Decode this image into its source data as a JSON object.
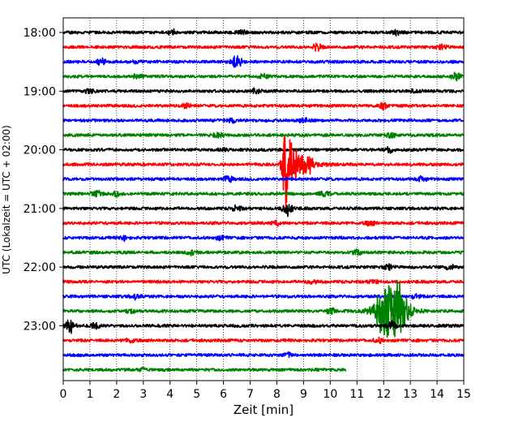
{
  "chart_data": {
    "type": "line",
    "subtype": "helicorder-seismogram",
    "title": "",
    "xlabel": "Zeit  [min]",
    "ylabel": "UTC (Lokalzeit = UTC + 02:00)",
    "xlim": [
      0,
      15
    ],
    "x_ticks": [
      0,
      1,
      2,
      3,
      4,
      5,
      6,
      7,
      8,
      9,
      10,
      11,
      12,
      13,
      14,
      15
    ],
    "x_tick_labels": [
      "0",
      "1",
      "2",
      "3",
      "4",
      "5",
      "6",
      "7",
      "8",
      "9",
      "10",
      "11",
      "12",
      "13",
      "14",
      "15"
    ],
    "y_tick_labels": [
      "18:00",
      "19:00",
      "20:00",
      "21:00",
      "22:00",
      "23:00"
    ],
    "y_tick_row_indices": [
      0,
      4,
      8,
      12,
      16,
      20
    ],
    "grid": "vertical-dotted",
    "line_interval_minutes": 15,
    "start_time": "18:00",
    "trace_color_cycle": [
      "#000000",
      "#ff0000",
      "#0000ff",
      "#008000"
    ],
    "traces": [
      {
        "start": "18:00",
        "color": "#000000",
        "end_min": 15,
        "events": [
          {
            "t": 4.1,
            "amp": 3
          },
          {
            "t": 6.7,
            "amp": 3
          },
          {
            "t": 12.5,
            "amp": 3
          }
        ]
      },
      {
        "start": "18:15",
        "color": "#ff0000",
        "end_min": 15,
        "events": [
          {
            "t": 9.5,
            "amp": 4
          },
          {
            "t": 14.2,
            "amp": 4
          }
        ]
      },
      {
        "start": "18:30",
        "color": "#0000ff",
        "end_min": 15,
        "events": [
          {
            "t": 1.4,
            "amp": 4
          },
          {
            "t": 6.5,
            "amp": 10
          },
          {
            "t": 2.7,
            "amp": 2
          }
        ]
      },
      {
        "start": "18:45",
        "color": "#008000",
        "end_min": 15,
        "events": [
          {
            "t": 2.8,
            "amp": 3
          },
          {
            "t": 7.5,
            "amp": 3
          },
          {
            "t": 14.7,
            "amp": 4
          }
        ]
      },
      {
        "start": "19:00",
        "color": "#000000",
        "end_min": 15,
        "events": [
          {
            "t": 1.0,
            "amp": 3
          },
          {
            "t": 7.2,
            "amp": 3
          },
          {
            "t": 13.2,
            "amp": 3
          }
        ]
      },
      {
        "start": "19:15",
        "color": "#ff0000",
        "end_min": 15,
        "events": [
          {
            "t": 4.6,
            "amp": 3
          },
          {
            "t": 12.0,
            "amp": 4
          }
        ]
      },
      {
        "start": "19:30",
        "color": "#0000ff",
        "end_min": 15,
        "events": [
          {
            "t": 6.3,
            "amp": 3
          },
          {
            "t": 9.0,
            "amp": 3
          }
        ]
      },
      {
        "start": "19:45",
        "color": "#008000",
        "end_min": 15,
        "events": [
          {
            "t": 5.8,
            "amp": 3
          },
          {
            "t": 12.3,
            "amp": 3
          }
        ]
      },
      {
        "start": "20:00",
        "color": "#000000",
        "end_min": 15,
        "events": [
          {
            "t": 12.2,
            "amp": 3
          },
          {
            "t": 6.0,
            "amp": 2
          }
        ]
      },
      {
        "start": "20:15",
        "color": "#ff0000",
        "end_min": 15,
        "events": [
          {
            "t": 8.35,
            "amp": 60
          },
          {
            "t": 9.2,
            "amp": 10
          }
        ]
      },
      {
        "start": "20:30",
        "color": "#0000ff",
        "end_min": 15,
        "events": [
          {
            "t": 6.2,
            "amp": 4
          },
          {
            "t": 13.4,
            "amp": 3
          }
        ]
      },
      {
        "start": "20:45",
        "color": "#008000",
        "end_min": 15,
        "events": [
          {
            "t": 1.3,
            "amp": 4
          },
          {
            "t": 2.0,
            "amp": 3
          },
          {
            "t": 9.8,
            "amp": 3
          }
        ]
      },
      {
        "start": "21:00",
        "color": "#000000",
        "end_min": 15,
        "events": [
          {
            "t": 6.5,
            "amp": 3
          },
          {
            "t": 8.4,
            "amp": 10
          }
        ]
      },
      {
        "start": "21:15",
        "color": "#ff0000",
        "end_min": 15,
        "events": [
          {
            "t": 8.0,
            "amp": 3
          },
          {
            "t": 11.5,
            "amp": 3
          }
        ]
      },
      {
        "start": "21:30",
        "color": "#0000ff",
        "end_min": 15,
        "events": [
          {
            "t": 2.3,
            "amp": 3
          },
          {
            "t": 5.9,
            "amp": 3
          }
        ]
      },
      {
        "start": "21:45",
        "color": "#008000",
        "end_min": 15,
        "events": [
          {
            "t": 4.8,
            "amp": 3
          },
          {
            "t": 11.0,
            "amp": 3
          }
        ]
      },
      {
        "start": "22:00",
        "color": "#000000",
        "end_min": 15,
        "events": [
          {
            "t": 12.2,
            "amp": 4
          },
          {
            "t": 14.5,
            "amp": 3
          }
        ]
      },
      {
        "start": "22:15",
        "color": "#ff0000",
        "end_min": 15,
        "events": [
          {
            "t": 9.3,
            "amp": 3
          },
          {
            "t": 11.6,
            "amp": 3
          }
        ]
      },
      {
        "start": "22:30",
        "color": "#0000ff",
        "end_min": 15,
        "events": [
          {
            "t": 2.7,
            "amp": 3
          },
          {
            "t": 13.2,
            "amp": 3
          }
        ]
      },
      {
        "start": "22:45",
        "color": "#008000",
        "end_min": 15,
        "events": [
          {
            "t": 12.3,
            "amp": 45
          },
          {
            "t": 2.5,
            "amp": 2
          },
          {
            "t": 10.0,
            "amp": 4
          }
        ]
      },
      {
        "start": "23:00",
        "color": "#000000",
        "end_min": 15,
        "events": [
          {
            "t": 0.25,
            "amp": 9
          },
          {
            "t": 1.2,
            "amp": 3
          },
          {
            "t": 12.3,
            "amp": 6
          }
        ]
      },
      {
        "start": "23:15",
        "color": "#ff0000",
        "end_min": 15,
        "events": [
          {
            "t": 2.5,
            "amp": 3
          },
          {
            "t": 11.8,
            "amp": 3
          }
        ]
      },
      {
        "start": "23:30",
        "color": "#0000ff",
        "end_min": 15,
        "events": [
          {
            "t": 8.4,
            "amp": 3
          }
        ]
      },
      {
        "start": "23:45",
        "color": "#008000",
        "end_min": 10.6,
        "events": [
          {
            "t": 3.0,
            "amp": 2
          }
        ]
      }
    ]
  }
}
